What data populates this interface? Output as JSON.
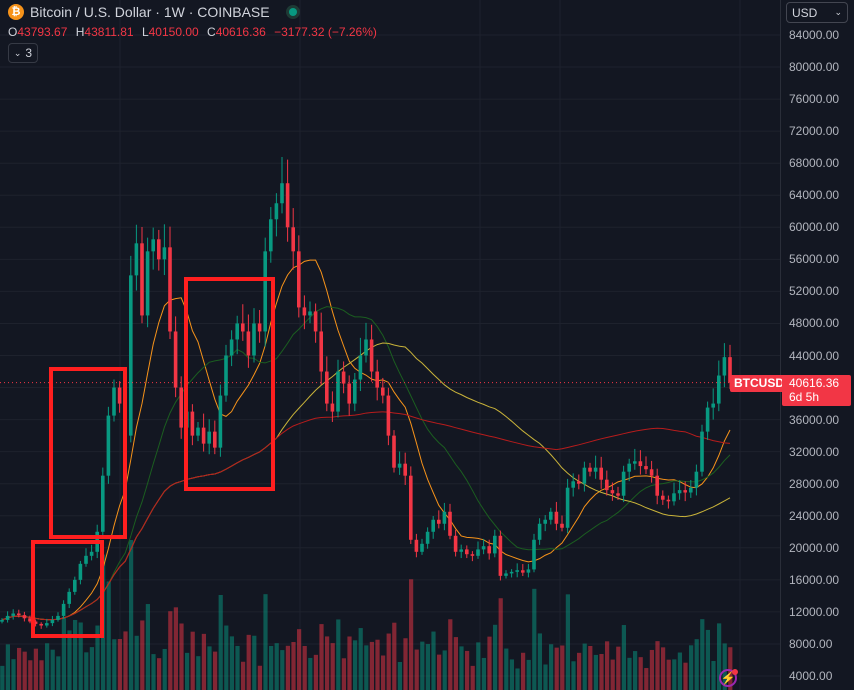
{
  "header": {
    "symbol_icon": "bitcoin-icon",
    "title": "Bitcoin / U.S. Dollar · 1W · COINBASE",
    "market_status": "open",
    "ohlc": {
      "o_label": "O",
      "o": "43793.67",
      "h_label": "H",
      "h": "43811.81",
      "l_label": "L",
      "l": "40150.00",
      "c_label": "C",
      "c": "40616.36",
      "change": "−3177.32 (−7.26%)"
    },
    "indicators_toggle": "3"
  },
  "axis": {
    "currency": "USD",
    "ticks": [
      "84000.00",
      "80000.00",
      "76000.00",
      "72000.00",
      "68000.00",
      "64000.00",
      "60000.00",
      "56000.00",
      "52000.00",
      "48000.00",
      "44000.00",
      "36000.00",
      "32000.00",
      "28000.00",
      "24000.00",
      "20000.00",
      "16000.00",
      "12000.00",
      "8000.00",
      "4000.00"
    ]
  },
  "price_label": {
    "symbol": "BTCUSD",
    "price": "40616.36",
    "countdown": "6d 5h"
  },
  "colors": {
    "up": "#089981",
    "down": "#f23645",
    "ma_fast": "#f7931a",
    "ma_mid": "#1b5e20",
    "ma_slow": "#c9b33a",
    "ma_long": "#b71c1c",
    "annotation": "#ff1f1f"
  },
  "chart_data": {
    "type": "candlestick",
    "interval": "1W",
    "ylim": [
      4000,
      84000
    ],
    "grid": true,
    "closes": [
      11.0,
      11.5,
      11.8,
      11.6,
      11.2,
      10.8,
      10.5,
      10.3,
      10.6,
      11.0,
      11.5,
      13.0,
      14.5,
      16.0,
      18.0,
      19.0,
      19.5,
      22.0,
      29.0,
      36.5,
      40.0,
      38.0,
      34.0,
      54.0,
      58.0,
      49.0,
      57.0,
      58.5,
      56.0,
      57.5,
      47.0,
      40.0,
      35.0,
      37.0,
      34.0,
      35.0,
      33.0,
      34.5,
      32.5,
      39.0,
      44.0,
      46.0,
      48.0,
      47.0,
      44.0,
      48.0,
      47.0,
      57.0,
      61.0,
      63.0,
      65.5,
      60.0,
      57.0,
      50.0,
      49.0,
      49.5,
      47.0,
      42.0,
      38.0,
      37.0,
      42.0,
      40.5,
      38.0,
      41.0,
      44.0,
      46.0,
      42.0,
      40.0,
      39.0,
      34.0,
      30.0,
      30.5,
      29.0,
      21.0,
      19.5,
      20.5,
      22.0,
      23.5,
      23.0,
      24.5,
      21.5,
      19.5,
      19.8,
      19.2,
      19.0,
      19.8,
      20.2,
      19.3,
      21.5,
      16.5,
      16.8,
      17.0,
      17.2,
      16.9,
      17.3,
      21.0,
      23.0,
      23.5,
      24.5,
      23.0,
      22.5,
      27.5,
      28.3,
      28.0,
      30.0,
      29.5,
      30.0,
      28.5,
      27.2,
      26.8,
      26.5,
      29.5,
      30.5,
      30.8,
      30.2,
      29.8,
      29.0,
      26.5,
      26.0,
      25.8,
      26.8,
      27.2,
      26.9,
      27.5,
      29.5,
      34.5,
      37.5,
      38.0,
      41.5,
      43.79367,
      40.61636
    ],
    "closes_unit": "thousand USD",
    "moving_averages": [
      10,
      20,
      50,
      100
    ]
  }
}
